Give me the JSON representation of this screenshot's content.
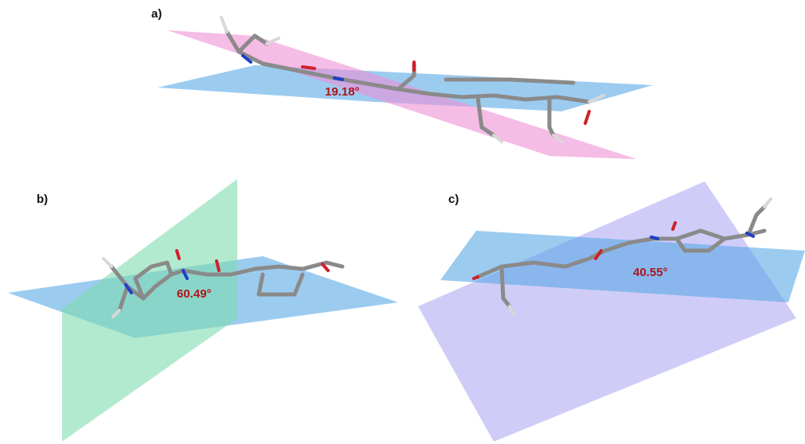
{
  "panels": [
    {
      "label": "a)",
      "angle": "19.18°"
    },
    {
      "label": "b)",
      "angle": "60.49°"
    },
    {
      "label": "c)",
      "angle": "40.55°"
    }
  ]
}
